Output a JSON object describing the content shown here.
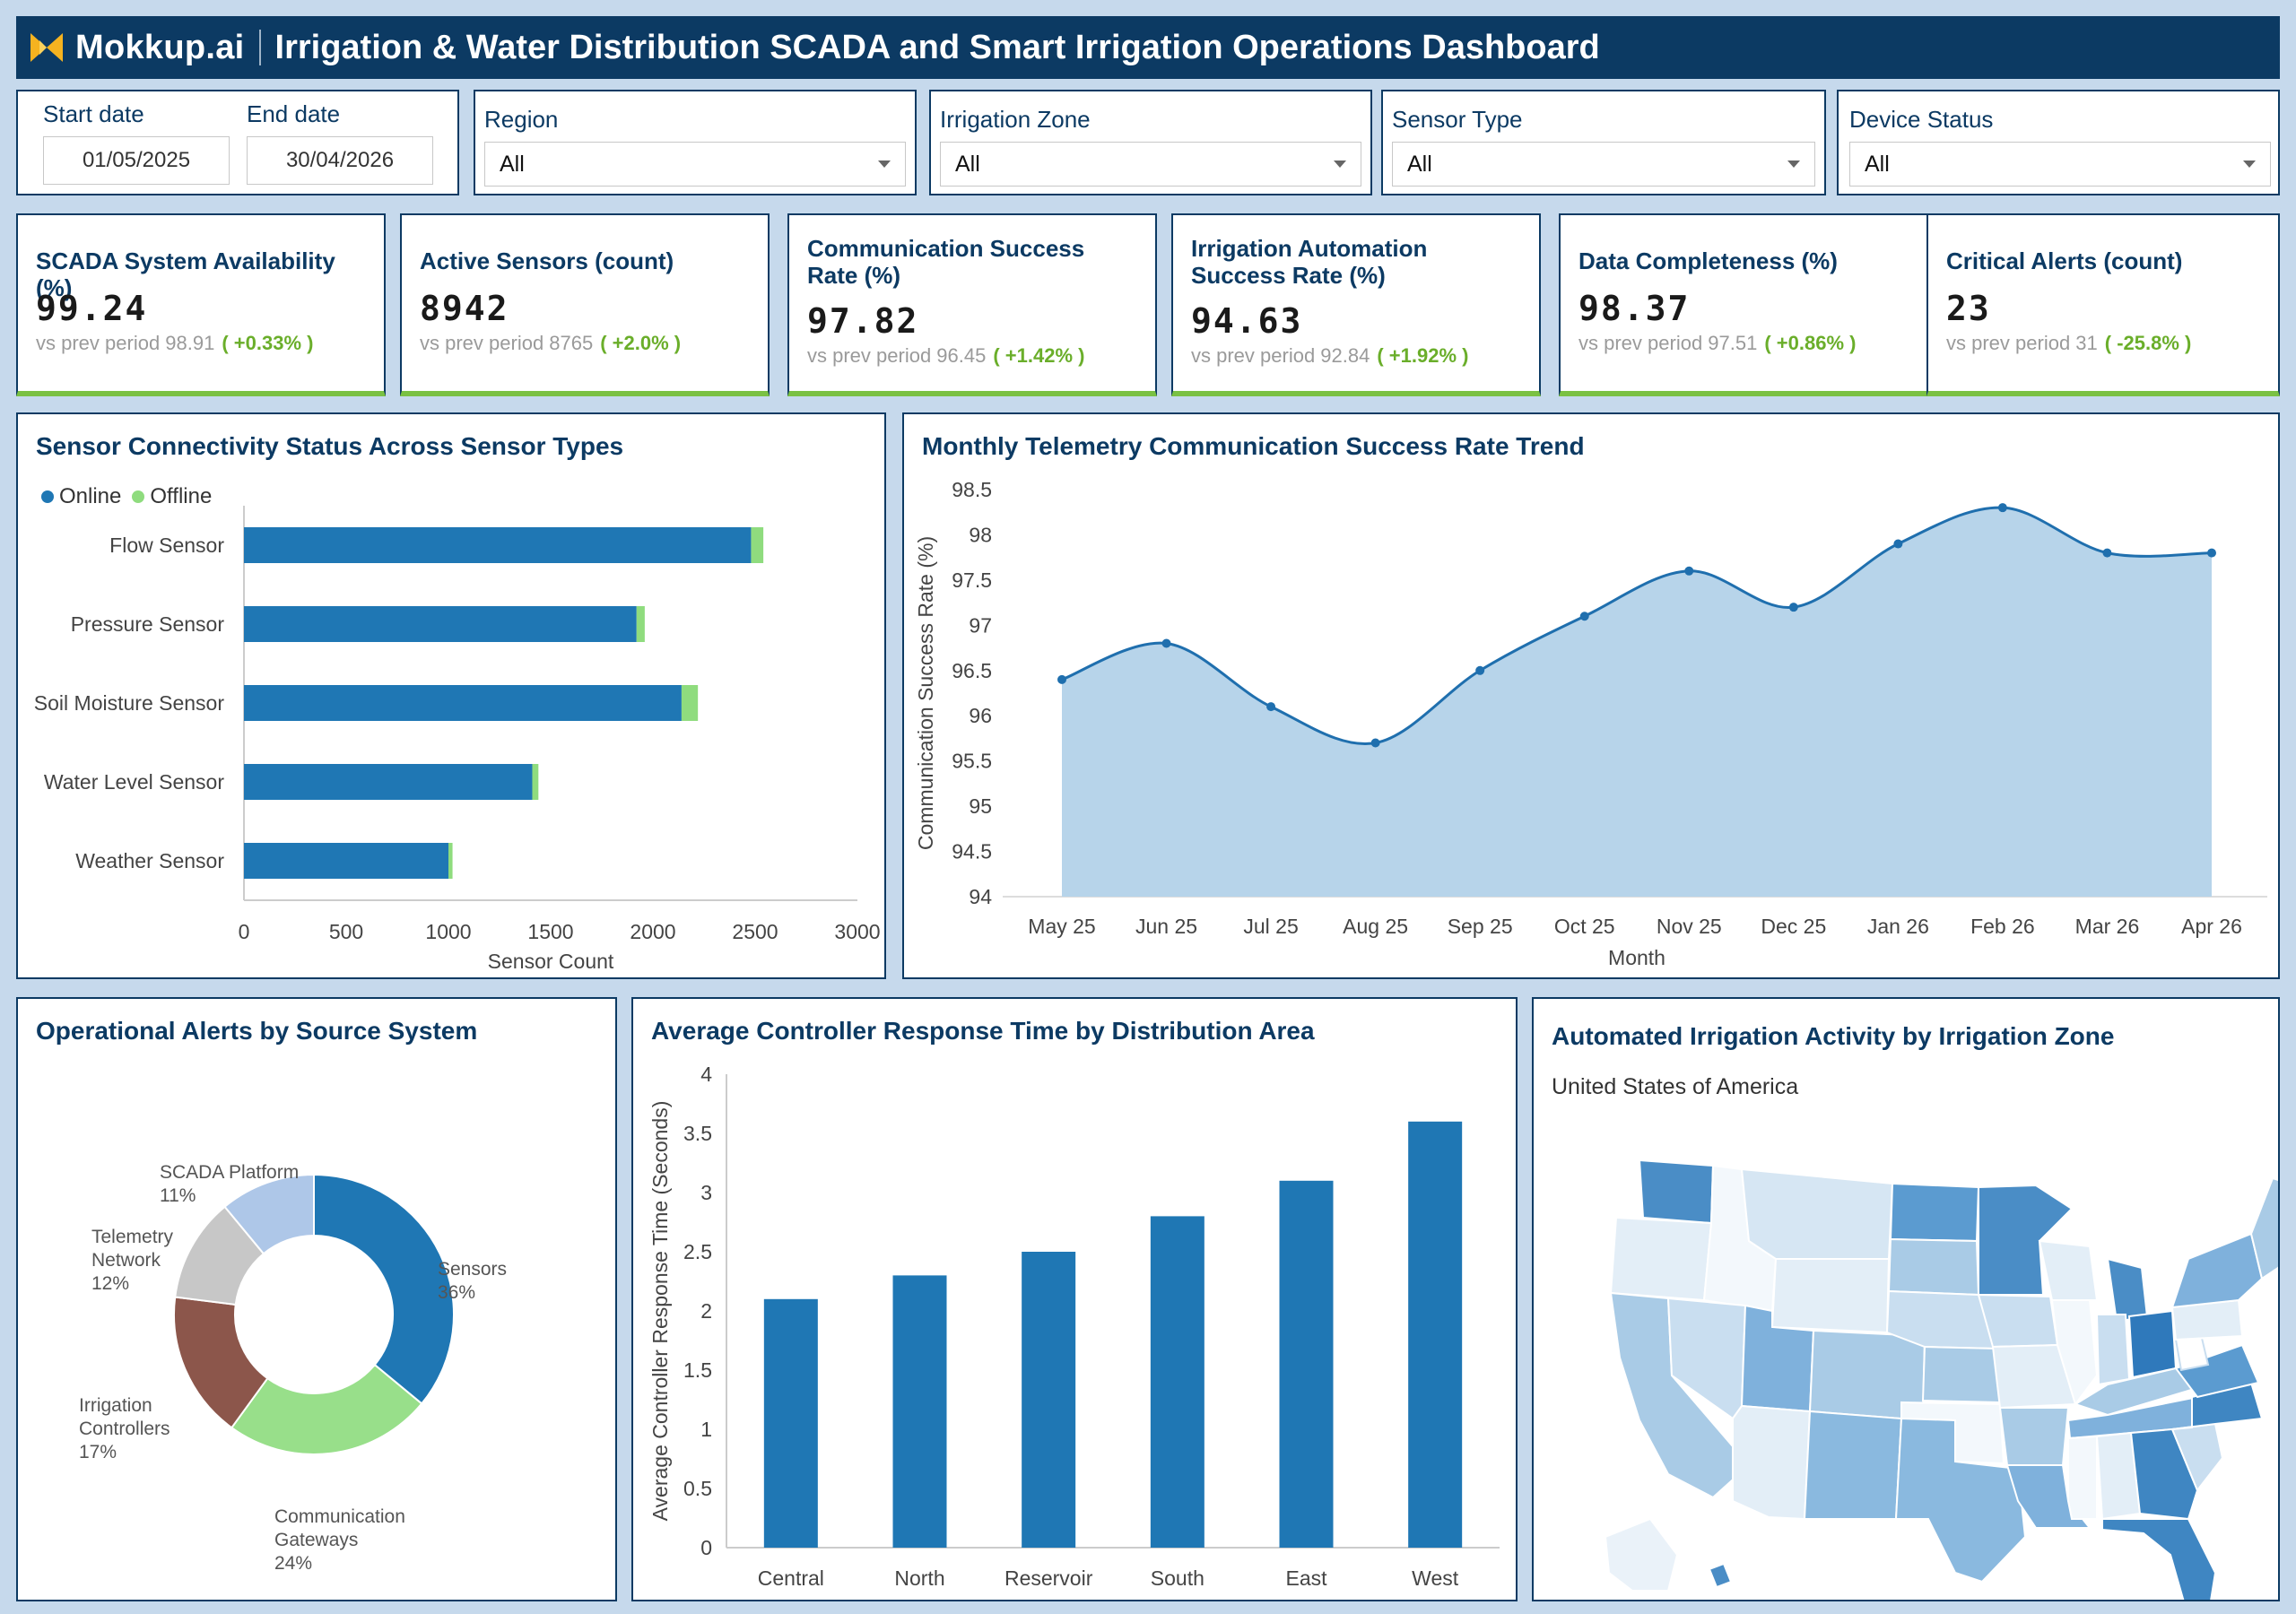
{
  "header": {
    "brand": "Mokkup.ai",
    "title": "Irrigation & Water Distribution SCADA and Smart Irrigation Operations Dashboard"
  },
  "filters": {
    "start_label": "Start date",
    "start_value": "01/05/2025",
    "end_label": "End date",
    "end_value": "30/04/2026",
    "region_label": "Region",
    "region_value": "All",
    "zone_label": "Irrigation Zone",
    "zone_value": "All",
    "sensor_label": "Sensor Type",
    "sensor_value": "All",
    "status_label": "Device Status",
    "status_value": "All"
  },
  "kpis": [
    {
      "title": "SCADA System Availability (%)",
      "value": "99.24",
      "compare": "vs prev period 98.91",
      "change": "( +0.33% )"
    },
    {
      "title": "Active Sensors (count)",
      "value": "8942",
      "compare": "vs prev period 8765",
      "change": "( +2.0% )"
    },
    {
      "title": "Communication Success Rate (%)",
      "value": "97.82",
      "compare": "vs prev period 96.45",
      "change": "( +1.42% )"
    },
    {
      "title": "Irrigation Automation Success Rate (%)",
      "value": "94.63",
      "compare": "vs prev period 92.84",
      "change": "( +1.92% )"
    },
    {
      "title": "Data Completeness (%)",
      "value": "98.37",
      "compare": "vs prev period 97.51",
      "change": "( +0.86% )"
    },
    {
      "title": "Critical Alerts (count)",
      "value": "23",
      "compare": "vs prev period 31",
      "change": "( -25.8% )"
    }
  ],
  "colors": {
    "navy": "#0c3a63",
    "blue": "#1f77b4",
    "green": "#8fdc7e",
    "kpi_green": "#7ac143",
    "area": "#b7d4ea"
  },
  "panels": {
    "connectivity_title": "Sensor Connectivity Status Across Sensor Types",
    "trend_title": "Monthly Telemetry Communication Success Rate Trend",
    "alerts_title": "Operational Alerts by Source System",
    "response_title": "Average Controller Response Time by Distribution Area",
    "map_title": "Automated Irrigation Activity by Irrigation Zone",
    "map_subtitle": "United States of America"
  },
  "chart_data": [
    {
      "type": "bar",
      "orientation": "horizontal",
      "stacked": true,
      "categories": [
        "Flow Sensor",
        "Pressure Sensor",
        "Soil Moisture Sensor",
        "Water Level Sensor",
        "Weather Sensor"
      ],
      "series": [
        {
          "name": "Online",
          "values": [
            2480,
            1920,
            2140,
            1410,
            1000
          ],
          "color": "#1f77b4"
        },
        {
          "name": "Offline",
          "values": [
            60,
            40,
            80,
            30,
            20
          ],
          "color": "#8fdc7e"
        }
      ],
      "xlabel": "Sensor Count",
      "ylabel": "",
      "xlim": [
        0,
        3000
      ],
      "xticks": [
        0,
        500,
        1000,
        1500,
        2000,
        2500,
        3000
      ],
      "legend": "top-left"
    },
    {
      "type": "area",
      "x": [
        "May 25",
        "Jun 25",
        "Jul 25",
        "Aug 25",
        "Sep 25",
        "Oct 25",
        "Nov 25",
        "Dec 25",
        "Jan 26",
        "Feb 26",
        "Mar 26",
        "Apr 26"
      ],
      "values": [
        96.4,
        96.8,
        96.1,
        95.7,
        96.5,
        97.1,
        97.6,
        97.2,
        97.9,
        98.3,
        97.8,
        97.8
      ],
      "xlabel": "Month",
      "ylabel": "Communication Success Rate (%)",
      "ylim": [
        94,
        98.5
      ],
      "yticks": [
        94,
        94.5,
        95,
        95.5,
        96,
        96.5,
        97,
        97.5,
        98,
        98.5
      ]
    },
    {
      "type": "pie",
      "donut": true,
      "slices": [
        {
          "label": "Sensors",
          "pct": "36%",
          "value": 36,
          "color": "#1f77b4"
        },
        {
          "label": "Communication Gateways",
          "pct": "24%",
          "value": 24,
          "color": "#98df8a"
        },
        {
          "label": "Irrigation Controllers",
          "pct": "17%",
          "value": 17,
          "color": "#8c564b"
        },
        {
          "label": "Telemetry Network",
          "pct": "12%",
          "value": 12,
          "color": "#c7c7c7"
        },
        {
          "label": "SCADA Platform",
          "pct": "11%",
          "value": 11,
          "color": "#aec7e8"
        }
      ]
    },
    {
      "type": "bar",
      "categories": [
        "Central",
        "North",
        "Reservoir",
        "South",
        "East",
        "West"
      ],
      "values": [
        2.1,
        2.3,
        2.5,
        2.8,
        3.1,
        3.6
      ],
      "xlabel": "",
      "ylabel": "Average Controller Response Time (Seconds)",
      "ylim": [
        0,
        4
      ],
      "yticks": [
        0,
        0.5,
        1,
        1.5,
        2,
        2.5,
        3,
        3.5,
        4
      ]
    }
  ]
}
